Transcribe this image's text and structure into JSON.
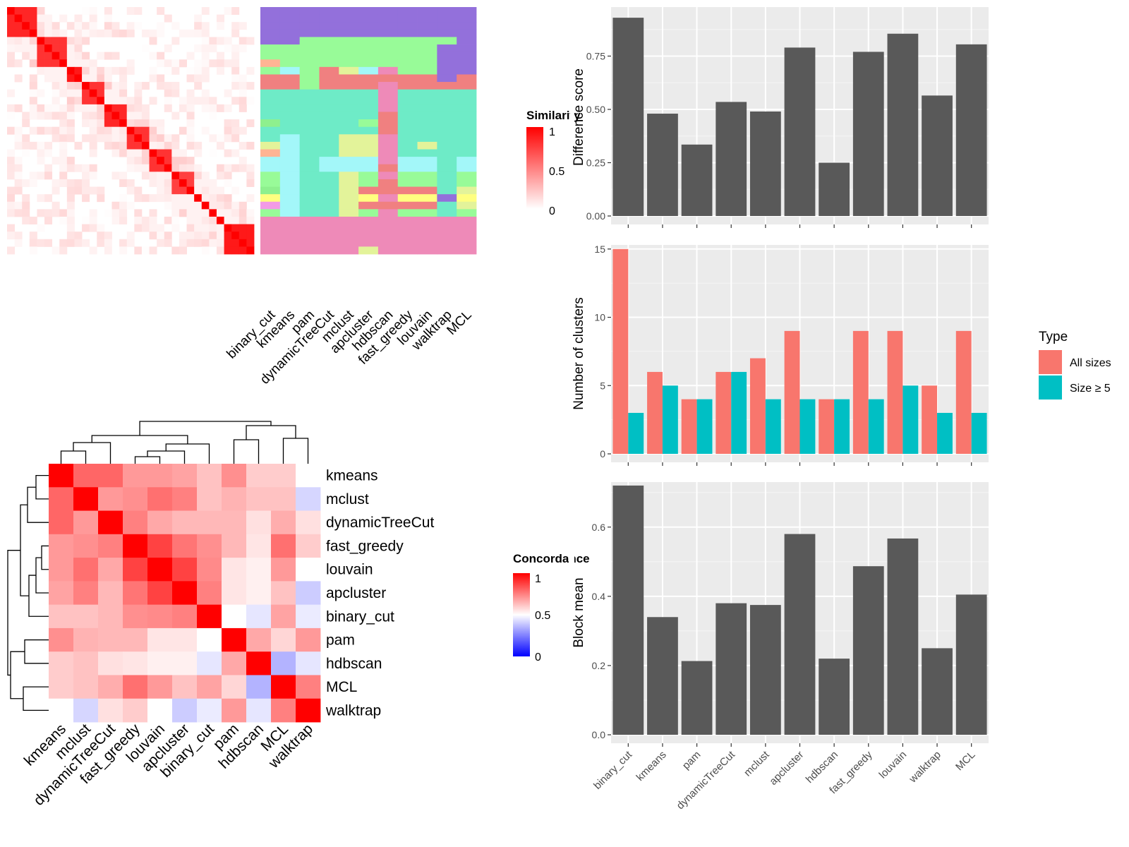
{
  "chart_data": [
    {
      "type": "heatmap",
      "panel": "similarity-heatmap",
      "legend_title": "Similarity",
      "legend_ticks": [
        "1",
        "0.5",
        "0"
      ],
      "columns": [
        "binary_cut",
        "kmeans",
        "pam",
        "dynamicTreeCut",
        "mclust",
        "apcluster",
        "hdbscan",
        "fast_greedy",
        "louvain",
        "walktrap",
        "MCL"
      ],
      "blocks": [
        {
          "start": 0,
          "size": 4,
          "value": 0.85
        },
        {
          "start": 4,
          "size": 4,
          "value": 0.8
        },
        {
          "start": 8,
          "size": 2,
          "value": 0.9
        },
        {
          "start": 10,
          "size": 3,
          "value": 0.8
        },
        {
          "start": 13,
          "size": 3,
          "value": 0.85
        },
        {
          "start": 16,
          "size": 3,
          "value": 0.8
        },
        {
          "start": 19,
          "size": 3,
          "value": 0.8
        },
        {
          "start": 22,
          "size": 3,
          "value": 0.75
        },
        {
          "start": 25,
          "size": 1,
          "value": 1
        },
        {
          "start": 26,
          "size": 1,
          "value": 1
        },
        {
          "start": 27,
          "size": 1,
          "value": 1
        },
        {
          "start": 28,
          "size": 1,
          "value": 1
        },
        {
          "start": 29,
          "size": 4,
          "value": 0.9
        }
      ],
      "cluster_colors": [
        "#9370DB",
        "#98FB98",
        "#F08080",
        "#6EEBC7",
        "#A3F7F9",
        "#E3F39A",
        "#EE8AB8",
        "#FFFF80",
        "#F29BE6",
        "#8EF08E",
        "#FFB494"
      ],
      "cluster_assignments": [
        [
          0,
          0,
          0,
          0,
          0,
          0,
          0,
          0,
          0,
          0,
          0
        ],
        [
          0,
          0,
          0,
          0,
          0,
          0,
          0,
          0,
          0,
          0,
          0
        ],
        [
          0,
          0,
          0,
          0,
          0,
          0,
          0,
          0,
          0,
          0,
          0
        ],
        [
          0,
          0,
          0,
          0,
          0,
          0,
          0,
          0,
          0,
          0,
          0
        ],
        [
          0,
          0,
          1,
          1,
          1,
          1,
          1,
          1,
          1,
          1,
          0
        ],
        [
          1,
          1,
          1,
          1,
          1,
          1,
          1,
          1,
          1,
          0,
          0
        ],
        [
          1,
          1,
          1,
          1,
          1,
          1,
          1,
          1,
          1,
          0,
          0
        ],
        [
          10,
          1,
          1,
          1,
          1,
          1,
          1,
          1,
          1,
          0,
          0
        ],
        [
          1,
          4,
          1,
          2,
          5,
          4,
          6,
          1,
          1,
          0,
          0
        ],
        [
          2,
          2,
          1,
          2,
          2,
          2,
          2,
          2,
          2,
          0,
          2
        ],
        [
          2,
          2,
          1,
          2,
          2,
          2,
          6,
          2,
          2,
          2,
          2
        ],
        [
          3,
          3,
          3,
          3,
          3,
          3,
          6,
          3,
          3,
          3,
          3
        ],
        [
          3,
          3,
          3,
          3,
          3,
          3,
          6,
          3,
          3,
          3,
          3
        ],
        [
          3,
          3,
          3,
          3,
          3,
          3,
          6,
          3,
          3,
          3,
          3
        ],
        [
          3,
          3,
          3,
          3,
          3,
          3,
          2,
          3,
          3,
          3,
          3
        ],
        [
          9,
          3,
          3,
          3,
          3,
          1,
          2,
          3,
          3,
          3,
          3
        ],
        [
          3,
          3,
          3,
          3,
          3,
          3,
          2,
          3,
          3,
          3,
          3
        ],
        [
          3,
          4,
          3,
          3,
          5,
          5,
          6,
          3,
          3,
          3,
          3
        ],
        [
          5,
          4,
          3,
          3,
          5,
          5,
          6,
          3,
          5,
          3,
          3
        ],
        [
          10,
          4,
          3,
          3,
          5,
          5,
          6,
          3,
          3,
          3,
          3
        ],
        [
          4,
          4,
          3,
          4,
          4,
          4,
          6,
          4,
          4,
          3,
          4
        ],
        [
          4,
          4,
          3,
          4,
          4,
          4,
          2,
          4,
          4,
          3,
          4
        ],
        [
          1,
          4,
          3,
          3,
          5,
          1,
          6,
          1,
          1,
          3,
          1
        ],
        [
          1,
          4,
          3,
          3,
          5,
          1,
          2,
          1,
          1,
          3,
          1
        ],
        [
          9,
          4,
          3,
          3,
          5,
          2,
          2,
          2,
          2,
          3,
          5
        ],
        [
          7,
          4,
          3,
          3,
          5,
          7,
          6,
          7,
          7,
          0,
          7
        ],
        [
          8,
          4,
          3,
          3,
          5,
          2,
          2,
          2,
          2,
          3,
          5
        ],
        [
          1,
          4,
          3,
          3,
          5,
          1,
          6,
          1,
          1,
          3,
          1
        ],
        [
          6,
          6,
          6,
          6,
          6,
          6,
          6,
          6,
          6,
          6,
          6
        ],
        [
          6,
          6,
          6,
          6,
          6,
          6,
          6,
          6,
          6,
          6,
          6
        ],
        [
          6,
          6,
          6,
          6,
          6,
          6,
          6,
          6,
          6,
          6,
          6
        ],
        [
          6,
          6,
          6,
          6,
          6,
          6,
          6,
          6,
          6,
          6,
          6
        ],
        [
          6,
          6,
          6,
          6,
          6,
          5,
          6,
          6,
          6,
          6,
          6
        ]
      ]
    },
    {
      "type": "heatmap",
      "panel": "concordance-heatmap",
      "legend_title": "Concordance",
      "legend_ticks": [
        "1",
        "0.5",
        "0"
      ],
      "rows": [
        "kmeans",
        "mclust",
        "dynamicTreeCut",
        "fast_greedy",
        "louvain",
        "apcluster",
        "binary_cut",
        "pam",
        "hdbscan",
        "MCL",
        "walktrap"
      ],
      "columns": [
        "kmeans",
        "mclust",
        "dynamicTreeCut",
        "fast_greedy",
        "louvain",
        "apcluster",
        "binary_cut",
        "pam",
        "hdbscan",
        "MCL",
        "walktrap"
      ],
      "values": [
        [
          1.0,
          0.8,
          0.8,
          0.7,
          0.7,
          0.68,
          0.62,
          0.72,
          0.6,
          0.6,
          0.5
        ],
        [
          0.8,
          1.0,
          0.7,
          0.72,
          0.78,
          0.75,
          0.62,
          0.65,
          0.62,
          0.62,
          0.42
        ],
        [
          0.8,
          0.7,
          1.0,
          0.75,
          0.67,
          0.64,
          0.64,
          0.64,
          0.56,
          0.66,
          0.56
        ],
        [
          0.7,
          0.72,
          0.75,
          1.0,
          0.87,
          0.77,
          0.72,
          0.64,
          0.55,
          0.78,
          0.6
        ],
        [
          0.7,
          0.78,
          0.67,
          0.87,
          1.0,
          0.87,
          0.73,
          0.55,
          0.53,
          0.7,
          0.5
        ],
        [
          0.68,
          0.75,
          0.64,
          0.77,
          0.87,
          1.0,
          0.75,
          0.55,
          0.53,
          0.62,
          0.4
        ],
        [
          0.62,
          0.62,
          0.64,
          0.72,
          0.73,
          0.75,
          1.0,
          0.5,
          0.45,
          0.68,
          0.46
        ],
        [
          0.72,
          0.65,
          0.64,
          0.64,
          0.55,
          0.55,
          0.5,
          1.0,
          0.67,
          0.58,
          0.7
        ],
        [
          0.6,
          0.62,
          0.56,
          0.55,
          0.53,
          0.53,
          0.45,
          0.67,
          1.0,
          0.35,
          0.45
        ],
        [
          0.6,
          0.62,
          0.66,
          0.78,
          0.7,
          0.62,
          0.68,
          0.58,
          0.35,
          1.0,
          0.75
        ],
        [
          0.5,
          0.42,
          0.56,
          0.6,
          0.5,
          0.4,
          0.46,
          0.7,
          0.45,
          0.75,
          1.0
        ]
      ]
    },
    {
      "type": "bar",
      "panel": "difference-score",
      "categories": [
        "binary_cut",
        "kmeans",
        "pam",
        "dynamicTreeCut",
        "mclust",
        "apcluster",
        "hdbscan",
        "fast_greedy",
        "louvain",
        "walktrap",
        "MCL"
      ],
      "values": [
        0.93,
        0.48,
        0.335,
        0.535,
        0.49,
        0.79,
        0.25,
        0.77,
        0.855,
        0.565,
        0.805
      ],
      "ylabel": "Difference score",
      "ylim": [
        0,
        0.98
      ],
      "yticks": [
        0,
        0.25,
        0.5,
        0.75
      ],
      "ytick_labels": [
        "0.00",
        "0.25",
        "0.50",
        "0.75"
      ],
      "grid": true,
      "color": "#595959"
    },
    {
      "type": "bar",
      "panel": "number-of-clusters",
      "categories": [
        "binary_cut",
        "kmeans",
        "pam",
        "dynamicTreeCut",
        "mclust",
        "apcluster",
        "hdbscan",
        "fast_greedy",
        "louvain",
        "walktrap",
        "MCL"
      ],
      "series": [
        {
          "name": "All sizes",
          "values": [
            15,
            6,
            4,
            6,
            7,
            9,
            4,
            9,
            9,
            5,
            9
          ],
          "color": "#F8766D"
        },
        {
          "name": "Size ≥ 5",
          "values": [
            3,
            5,
            4,
            6,
            4,
            4,
            4,
            4,
            5,
            3,
            3
          ],
          "color": "#00BFC4"
        }
      ],
      "ylabel": "Number of clusters",
      "ylim": [
        0,
        15.3
      ],
      "yticks": [
        0,
        5,
        10,
        15
      ],
      "ytick_labels": [
        "0",
        "5",
        "10",
        "15"
      ],
      "legend_title": "Type",
      "legend_position": "right",
      "grid": true
    },
    {
      "type": "bar",
      "panel": "block-mean",
      "categories": [
        "binary_cut",
        "kmeans",
        "pam",
        "dynamicTreeCut",
        "mclust",
        "apcluster",
        "hdbscan",
        "fast_greedy",
        "louvain",
        "walktrap",
        "MCL"
      ],
      "values": [
        0.72,
        0.34,
        0.213,
        0.38,
        0.375,
        0.58,
        0.22,
        0.487,
        0.567,
        0.25,
        0.405
      ],
      "ylabel": "Block mean",
      "ylim": [
        0,
        0.73
      ],
      "yticks": [
        0,
        0.2,
        0.4,
        0.6
      ],
      "ytick_labels": [
        "0.0",
        "0.2",
        "0.4",
        "0.6"
      ],
      "grid": true,
      "color": "#595959"
    }
  ]
}
